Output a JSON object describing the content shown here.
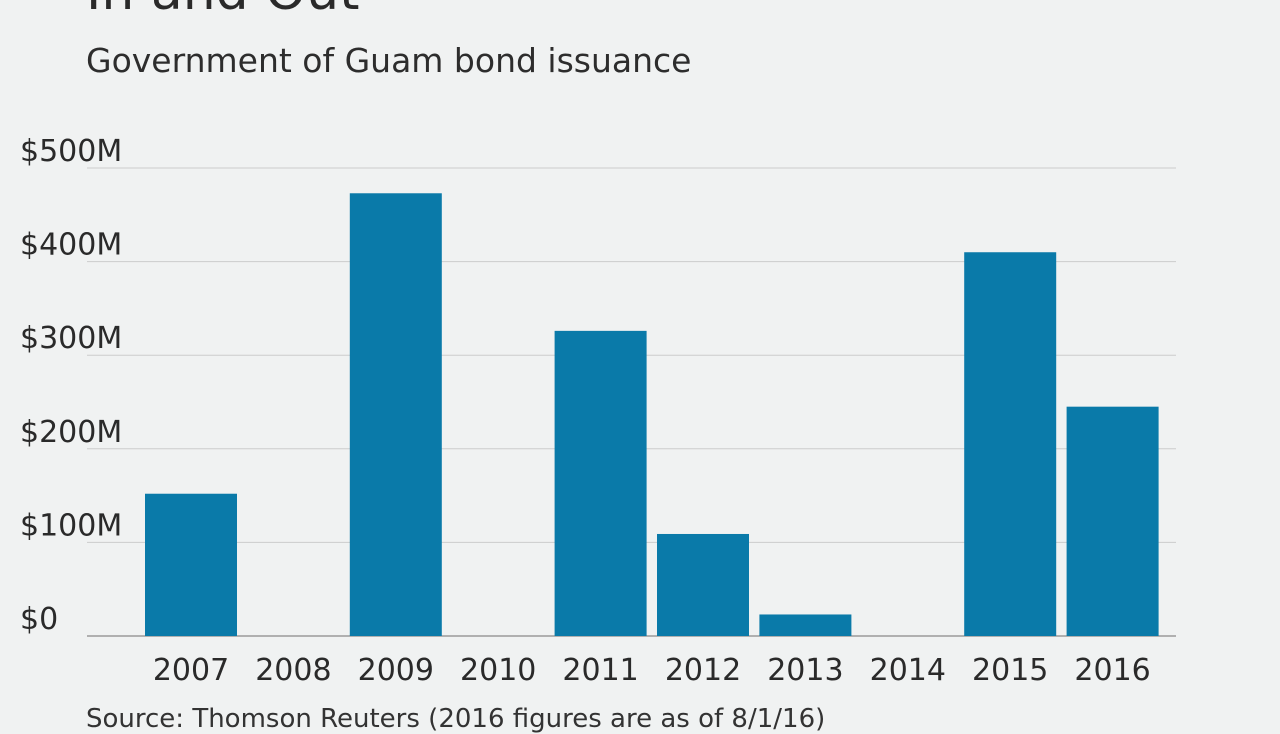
{
  "header": {
    "title": "In and Out",
    "subtitle": "Government of Guam bond issuance"
  },
  "footer": {
    "source": "Source: Thomson Reuters (2016 figures are as of 8/1/16)"
  },
  "colors": {
    "bar": "#0a7aa9",
    "grid": "#cccccc",
    "baseline": "#9a9a9a",
    "background": "#f0f2f2"
  },
  "chart_data": {
    "type": "bar",
    "categories": [
      "2007",
      "2008",
      "2009",
      "2010",
      "2011",
      "2012",
      "2013",
      "2014",
      "2015",
      "2016"
    ],
    "values": [
      152,
      0,
      473,
      0,
      326,
      109,
      23,
      0,
      410,
      245
    ],
    "ylim": [
      0,
      500
    ],
    "yticks": [
      0,
      100,
      200,
      300,
      400,
      500
    ],
    "ytick_labels": [
      "$0",
      "$100M",
      "$200M",
      "$300M",
      "$400M",
      "$500M"
    ],
    "grid": true,
    "xlabel": "",
    "ylabel": ""
  }
}
